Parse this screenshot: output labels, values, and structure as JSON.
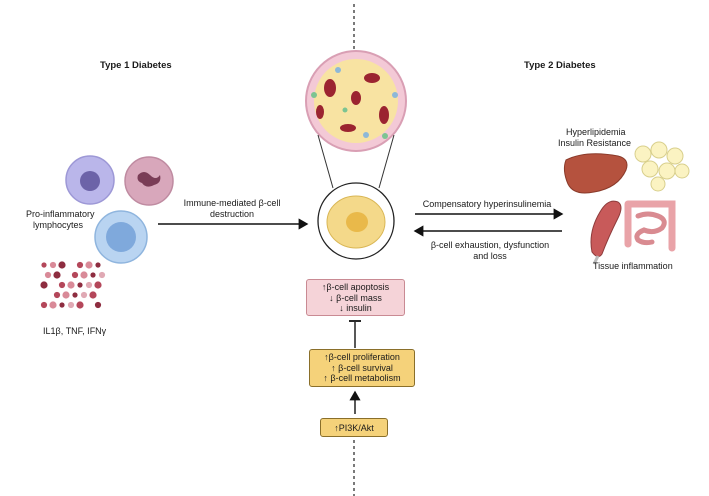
{
  "headings": {
    "type1": "Type 1 Diabetes",
    "type2": "Type 2 Diabetes"
  },
  "left": {
    "lymphocytes_label": [
      "Pro-inflammatory",
      "lymphocytes"
    ],
    "cytokines_label": "IL1β, TNF, IFNγ",
    "arrow_label": [
      "Immune-mediated β-cell",
      "destruction"
    ]
  },
  "right": {
    "risk_label": [
      "Hyperlipidemia",
      "Insulin Resistance"
    ],
    "tissue_label": "Tissue inflammation",
    "arrow_top_label": "Compensatory hyperinsulinemia",
    "arrow_bottom_label": [
      "β-cell exhaustion, dysfunction",
      "and loss"
    ]
  },
  "center": {
    "outcome_box": [
      "↑β-cell apoptosis",
      "↓ β-cell mass",
      "↓ insulin"
    ],
    "response_box": [
      "↑β-cell proliferation",
      "↑ β-cell survival",
      "↑  β-cell metabolism"
    ],
    "pathway_box": "↑PI3K/Akt"
  },
  "colors": {
    "outcome_fill": "#f5d3d8",
    "outcome_border": "#c98a93",
    "response_fill": "#f5d27a",
    "response_border": "#8a6f2a",
    "cell_fill": "#f4d98a",
    "cell_nucleus": "#e9b94a"
  },
  "icons": [
    "lymphocyte-icon",
    "neutrophil-icon",
    "macrophage-icon",
    "cytokine-dots-icon",
    "pancreatic-islet-icon",
    "beta-cell-icon",
    "liver-icon",
    "adipocytes-icon",
    "muscle-icon",
    "intestine-icon"
  ]
}
